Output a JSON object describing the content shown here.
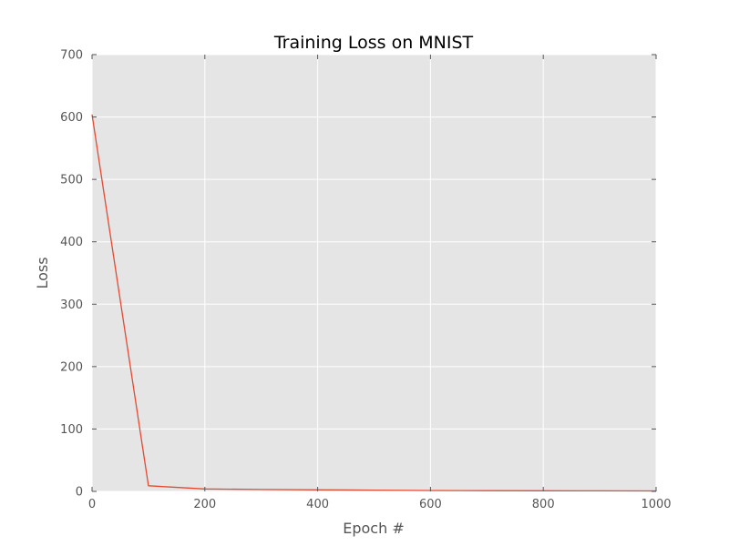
{
  "chart_data": {
    "type": "line",
    "title": "Training Loss on MNIST",
    "xlabel": "Epoch #",
    "ylabel": "Loss",
    "xlim": [
      0,
      1000
    ],
    "ylim": [
      0,
      700
    ],
    "xticks": [
      0,
      200,
      400,
      600,
      800,
      1000
    ],
    "yticks": [
      0,
      100,
      200,
      300,
      400,
      500,
      600,
      700
    ],
    "grid": true,
    "series": [
      {
        "color": "#e24a33",
        "x": [
          0,
          100,
          200,
          300,
          400,
          500,
          600,
          700,
          800,
          900,
          1000
        ],
        "y": [
          604,
          9,
          4,
          3,
          2.5,
          2,
          1.5,
          1.2,
          1,
          0.9,
          0.8
        ]
      }
    ],
    "colors": {
      "plot_background": "#e5e5e5",
      "grid": "#ffffff",
      "tick_text": "#555555",
      "title_text": "#000000"
    }
  }
}
